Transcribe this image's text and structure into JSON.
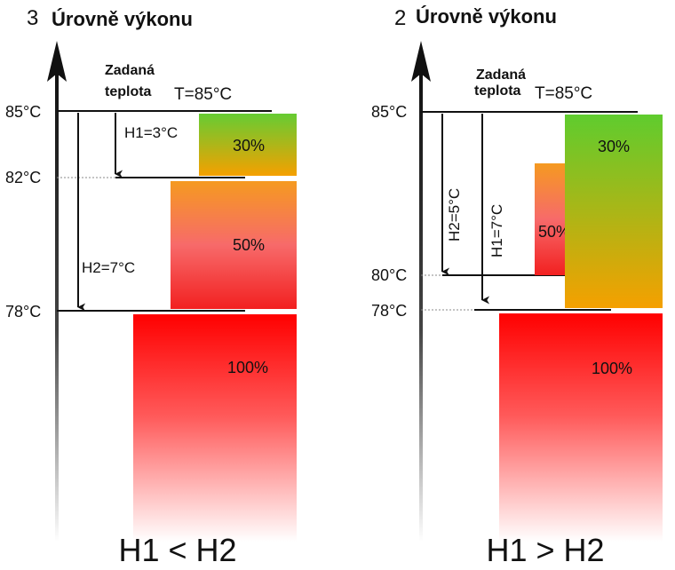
{
  "panels": [
    {
      "level_num": "3",
      "title": "Úrovně výkonu",
      "setpoint_label_1": "Zadaná",
      "setpoint_label_2": "teplota",
      "setpoint_value": "T=85°C",
      "temps": [
        "85°C",
        "82°C",
        "78°C"
      ],
      "h1": "H1=3°C",
      "h2": "H2=7°C",
      "pct30": "30%",
      "pct50": "50%",
      "pct100": "100%",
      "caption": "H1 < H2"
    },
    {
      "level_num": "2",
      "title": "Úrovně výkonu",
      "setpoint_label_1": "Zadaná",
      "setpoint_label_2": "teplota",
      "setpoint_value": "T=85°C",
      "temps": [
        "85°C",
        "80°C",
        "78°C"
      ],
      "h2": "H2=5°C",
      "h1": "H1=7°C",
      "pct30": "30%",
      "pct50": "50%",
      "pct100": "100%",
      "caption": "H1 > H2"
    }
  ],
  "colors": {
    "green": "#66cc33",
    "orange": "#f5a000",
    "red": "#ff0000"
  }
}
